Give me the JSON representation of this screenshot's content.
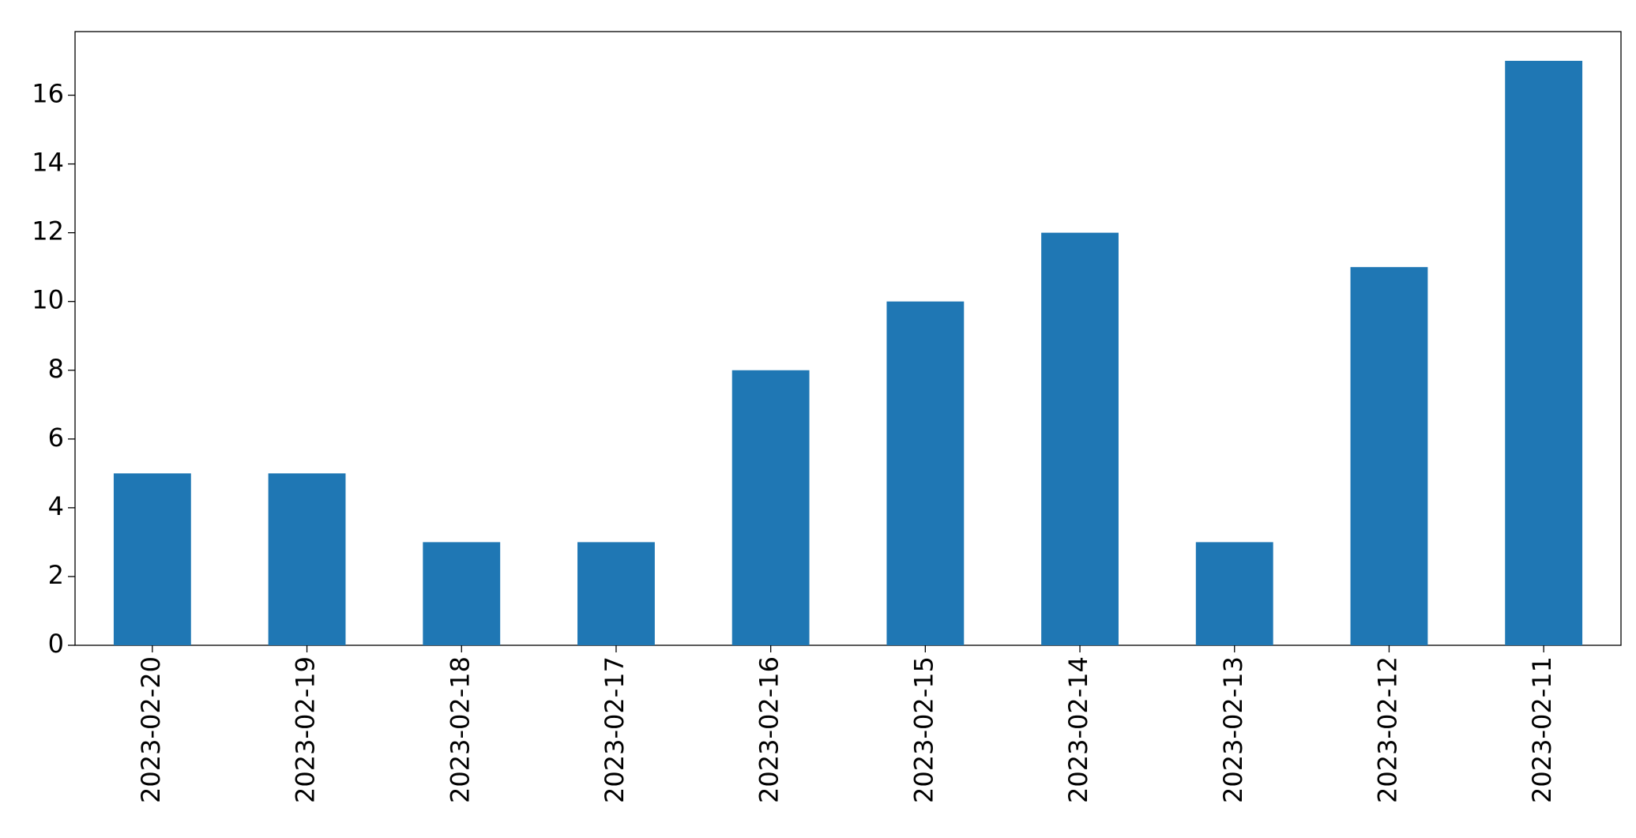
{
  "chart_data": {
    "type": "bar",
    "categories": [
      "2023-02-20",
      "2023-02-19",
      "2023-02-18",
      "2023-02-17",
      "2023-02-16",
      "2023-02-15",
      "2023-02-14",
      "2023-02-13",
      "2023-02-12",
      "2023-02-11"
    ],
    "values": [
      5,
      5,
      3,
      3,
      8,
      10,
      12,
      3,
      11,
      17
    ],
    "color": "#1f77b4",
    "ylim": [
      0,
      17.85
    ],
    "yticks": [
      0,
      2,
      4,
      6,
      8,
      10,
      12,
      14,
      16
    ],
    "grid": false
  }
}
